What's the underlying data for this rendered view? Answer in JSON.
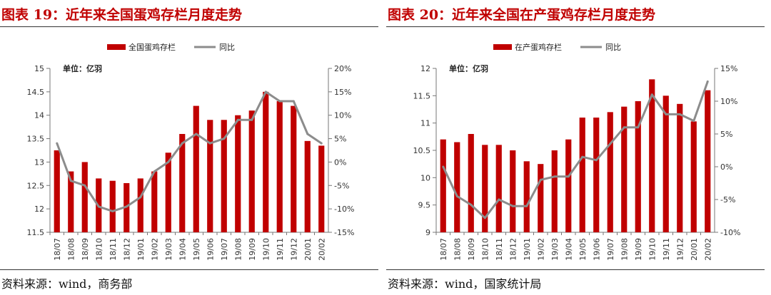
{
  "charts": [
    {
      "title": "图表 19：近年来全国蛋鸡存栏月度走势",
      "source": "资料来源：wind，商务部",
      "chart_data": {
        "type": "bar",
        "unit_note": "单位：亿羽",
        "categories": [
          "18/07",
          "18/08",
          "18/09",
          "18/10",
          "18/11",
          "18/12",
          "19/01",
          "19/02",
          "19/03",
          "19/04",
          "19/05",
          "19/06",
          "19/07",
          "19/08",
          "19/09",
          "19/10",
          "19/11",
          "19/12",
          "20/01",
          "20/02"
        ],
        "series": [
          {
            "name": "全国蛋鸡存栏",
            "kind": "bar",
            "axis": "left",
            "values": [
              13.25,
              12.8,
              13.0,
              12.65,
              12.6,
              12.55,
              12.65,
              12.8,
              13.2,
              13.6,
              14.2,
              13.9,
              13.9,
              14.0,
              14.1,
              14.5,
              14.3,
              14.2,
              13.45,
              13.35
            ]
          },
          {
            "name": "同比",
            "kind": "line",
            "axis": "right",
            "unit": "%",
            "values": [
              4,
              -4,
              -5,
              -9.5,
              -10.5,
              -9.5,
              -7.5,
              -2,
              0,
              4,
              6,
              4,
              5,
              9,
              9,
              15,
              13,
              13,
              6,
              4
            ]
          }
        ],
        "left_axis": {
          "ylim": [
            11.5,
            15
          ],
          "ticks": [
            "11.5",
            "12",
            "12.5",
            "13",
            "13.5",
            "14",
            "14.5",
            "15"
          ]
        },
        "right_axis": {
          "ylim": [
            -15,
            20
          ],
          "ticks": [
            "-15%",
            "-10%",
            "-5%",
            "0%",
            "5%",
            "10%",
            "15%",
            "20%"
          ]
        },
        "legend_position": "top-center",
        "grid": false,
        "colors": {
          "bar": "#c00000",
          "line": "#8c8c8c"
        }
      }
    },
    {
      "title": "图表 20：近年来全国在产蛋鸡存栏月度走势",
      "source": "资料来源：wind，国家统计局",
      "chart_data": {
        "type": "bar",
        "unit_note": "单位：亿羽",
        "categories": [
          "18/07",
          "18/08",
          "18/09",
          "18/10",
          "18/11",
          "18/12",
          "19/01",
          "19/02",
          "19/03",
          "19/04",
          "19/05",
          "19/06",
          "19/07",
          "19/08",
          "19/09",
          "19/10",
          "19/11",
          "19/12",
          "20/01",
          "20/02"
        ],
        "series": [
          {
            "name": "在产蛋鸡存栏",
            "kind": "bar",
            "axis": "left",
            "values": [
              10.7,
              10.65,
              10.8,
              10.6,
              10.6,
              10.5,
              10.3,
              10.25,
              10.5,
              10.7,
              11.1,
              11.1,
              11.2,
              11.3,
              11.4,
              11.8,
              11.5,
              11.35,
              11.03,
              11.6
            ]
          },
          {
            "name": "同比",
            "kind": "line",
            "axis": "right",
            "unit": "%",
            "values": [
              0,
              -4.5,
              -5.8,
              -7.8,
              -5,
              -6,
              -6,
              -2,
              -1.5,
              -1.5,
              1.5,
              1,
              3.5,
              6,
              6,
              11,
              8,
              8,
              7,
              13
            ]
          }
        ],
        "left_axis": {
          "ylim": [
            9,
            12
          ],
          "ticks": [
            "9",
            "9.5",
            "10",
            "10.5",
            "11",
            "11.5",
            "12"
          ]
        },
        "right_axis": {
          "ylim": [
            -10,
            15
          ],
          "ticks": [
            "-10%",
            "-5%",
            "0%",
            "5%",
            "10%",
            "15%"
          ]
        },
        "legend_position": "top-center",
        "grid": false,
        "colors": {
          "bar": "#c00000",
          "line": "#8c8c8c"
        }
      }
    }
  ]
}
